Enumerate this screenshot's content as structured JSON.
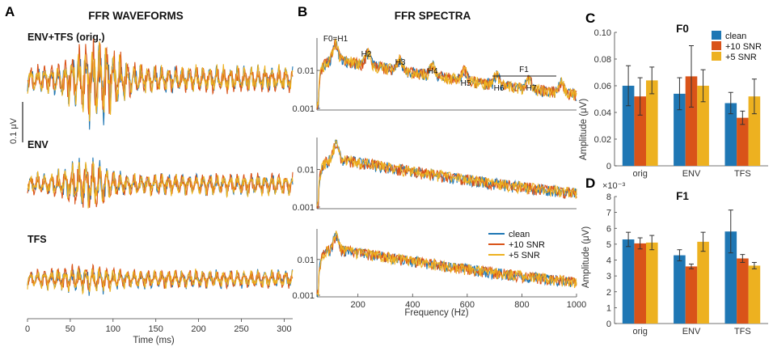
{
  "colors": {
    "clean": "#1f77b4",
    "snr10": "#d95319",
    "snr5": "#edb120"
  },
  "panelA": {
    "letter": "A",
    "title": "FFR WAVEFORMS",
    "conditions": [
      "ENV+TFS (orig.)",
      "ENV",
      "TFS"
    ],
    "scale_label": "0.1 μV",
    "xlabel": "Time (ms)",
    "xticks": [
      "0",
      "50",
      "100",
      "150",
      "200",
      "250",
      "300"
    ]
  },
  "panelB": {
    "letter": "B",
    "title": "FFR SPECTRA",
    "xlabel": "Frequency (Hz)",
    "xticks": [
      "200",
      "400",
      "600",
      "800",
      "1000"
    ],
    "yticks": [
      "0.01",
      "0.001"
    ],
    "peaks": [
      "F0=H1",
      "H2",
      "H3",
      "H4",
      "H5",
      "H6",
      "H7"
    ],
    "formant_label": "F1",
    "legend": [
      "clean",
      "+10 SNR",
      "+5 SNR"
    ]
  },
  "chart_data": [
    {
      "type": "bar",
      "panel": "C",
      "title": "F0",
      "ylabel": "Amplitude (μV)",
      "ylim": [
        0,
        0.1
      ],
      "yticks": [
        "0",
        "0.02",
        "0.04",
        "0.06",
        "0.08",
        "0.10"
      ],
      "categories": [
        "orig",
        "ENV",
        "TFS"
      ],
      "legend": [
        "clean",
        "+10 SNR",
        "+5 SNR"
      ],
      "legend_position": "top-right",
      "series": [
        {
          "name": "clean",
          "values": [
            0.06,
            0.054,
            0.047
          ],
          "errors": [
            0.015,
            0.012,
            0.008
          ]
        },
        {
          "name": "+10 SNR",
          "values": [
            0.052,
            0.067,
            0.036
          ],
          "errors": [
            0.014,
            0.023,
            0.005
          ]
        },
        {
          "name": "+5 SNR",
          "values": [
            0.064,
            0.06,
            0.052
          ],
          "errors": [
            0.01,
            0.012,
            0.013
          ]
        }
      ]
    },
    {
      "type": "bar",
      "panel": "D",
      "title": "F1",
      "ylabel": "Amplitude (μV)",
      "exponent_label": "×10⁻³",
      "ylim": [
        0,
        8
      ],
      "yticks": [
        "0",
        "1",
        "2",
        "3",
        "4",
        "5",
        "6",
        "7",
        "8"
      ],
      "categories": [
        "orig",
        "ENV",
        "TFS"
      ],
      "series": [
        {
          "name": "clean",
          "values": [
            5.3,
            4.3,
            5.8
          ],
          "errors": [
            0.45,
            0.35,
            1.35
          ]
        },
        {
          "name": "+10 SNR",
          "values": [
            5.05,
            3.6,
            4.1
          ],
          "errors": [
            0.35,
            0.15,
            0.25
          ]
        },
        {
          "name": "+5 SNR",
          "values": [
            5.1,
            5.15,
            3.65
          ],
          "errors": [
            0.45,
            0.6,
            0.2
          ]
        }
      ]
    }
  ]
}
